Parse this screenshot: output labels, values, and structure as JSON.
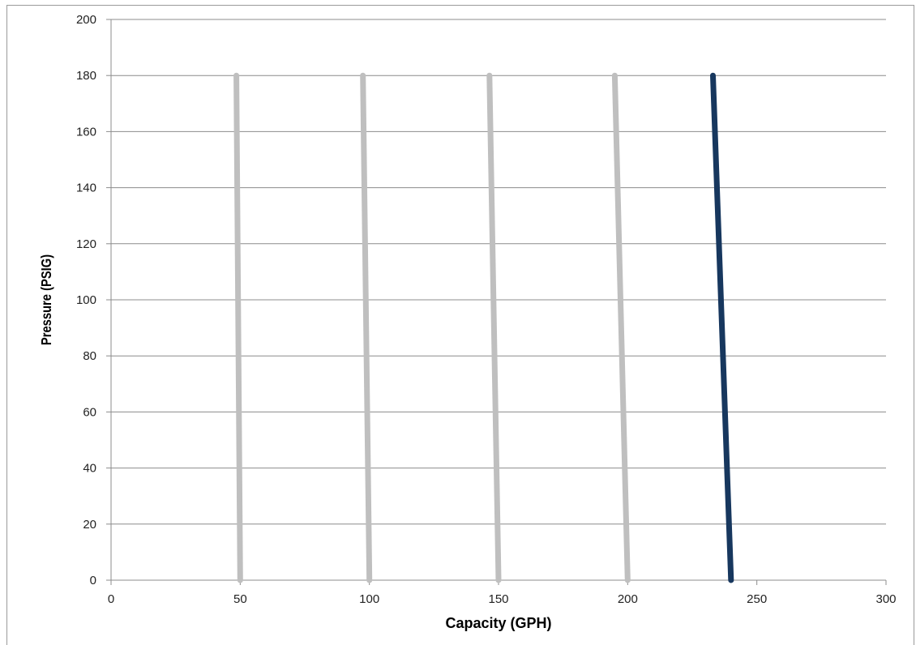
{
  "chart_data": {
    "type": "line",
    "xlabel": "Capacity (GPH)",
    "ylabel": "Pressure (PSIG)",
    "xlim": [
      0,
      300
    ],
    "ylim": [
      0,
      200
    ],
    "x_ticks": [
      "0",
      "50",
      "100",
      "150",
      "200",
      "250",
      "300"
    ],
    "y_ticks": [
      "0",
      "20",
      "40",
      "60",
      "80",
      "100",
      "120",
      "140",
      "160",
      "180",
      "200"
    ],
    "grid": "horizontal",
    "legend": "none",
    "series": [
      {
        "x": [
          48.5,
          50
        ],
        "y": [
          180,
          0
        ],
        "color": "#bfbfbf"
      },
      {
        "x": [
          97.5,
          100
        ],
        "y": [
          180,
          0
        ],
        "color": "#bfbfbf"
      },
      {
        "x": [
          146.5,
          150
        ],
        "y": [
          180,
          0
        ],
        "color": "#bfbfbf"
      },
      {
        "x": [
          195,
          200
        ],
        "y": [
          180,
          0
        ],
        "color": "#bfbfbf"
      },
      {
        "x": [
          233,
          240
        ],
        "y": [
          180,
          0
        ],
        "color": "#17375e"
      }
    ]
  }
}
